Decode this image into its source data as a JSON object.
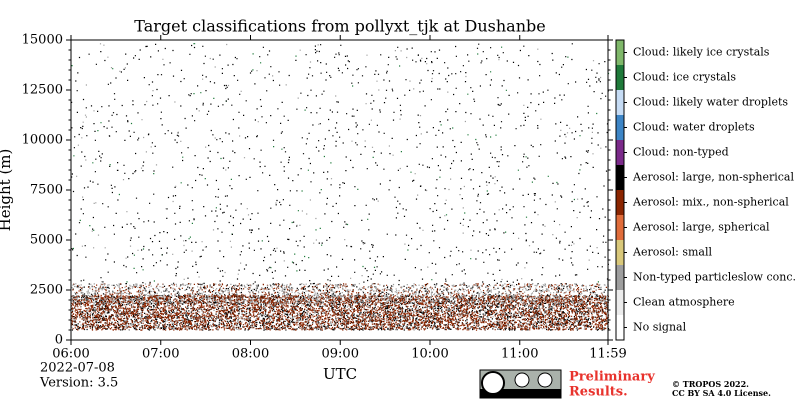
{
  "chart_data": {
    "type": "classification",
    "title": "Target classifications from pollyxt_tjk at Dushanbe",
    "xlabel": "UTC",
    "ylabel": "Height (m)",
    "xlim": [
      360,
      719
    ],
    "xticks": [
      {
        "value": 360,
        "label": "06:00"
      },
      {
        "value": 420,
        "label": "07:00"
      },
      {
        "value": 480,
        "label": "08:00"
      },
      {
        "value": 540,
        "label": "09:00"
      },
      {
        "value": 600,
        "label": "10:00"
      },
      {
        "value": 660,
        "label": "11:00"
      },
      {
        "value": 719,
        "label": "11:59"
      }
    ],
    "ylim": [
      0,
      15000
    ],
    "yticks": [
      0,
      2500,
      5000,
      7500,
      10000,
      12500,
      15000
    ],
    "classes": [
      {
        "name": "Cloud: likely ice crystals",
        "color": "#7fb86a"
      },
      {
        "name": "Cloud: ice crystals",
        "color": "#1f7a3a"
      },
      {
        "name": "Cloud: likely water droplets",
        "color": "#c6dcf5"
      },
      {
        "name": "Cloud: water droplets",
        "color": "#3d85c6"
      },
      {
        "name": "Cloud: non-typed",
        "color": "#7b2a8a"
      },
      {
        "name": "Aerosol: large, non-spherical",
        "color": "#000000"
      },
      {
        "name": "Aerosol: mix., non-spherical",
        "color": "#8b2500"
      },
      {
        "name": "Aerosol: large, spherical",
        "color": "#e06c3a"
      },
      {
        "name": "Aerosol: small",
        "color": "#d9c87a"
      },
      {
        "name": "Non-typed particleslow conc.",
        "color": "#9e9e9e"
      },
      {
        "name": "Clean atmosphere",
        "color": "#ececec"
      },
      {
        "name": "No signal",
        "color": "#ffffff"
      }
    ]
  },
  "footer": {
    "date": "2022-07-08",
    "version": "Version: 3.5",
    "preliminary": [
      "Preliminary",
      "Results."
    ],
    "license": [
      "© TROPOS 2022.",
      "CC BY SA 4.0 License."
    ]
  }
}
